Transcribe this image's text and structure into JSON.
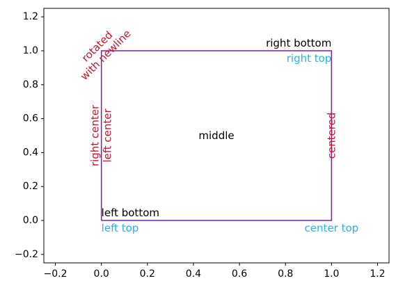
{
  "chart_data": {
    "type": "line",
    "title": "",
    "xlabel": "",
    "ylabel": "",
    "xlim": [
      -0.25,
      1.25
    ],
    "ylim": [
      -0.25,
      1.25
    ],
    "grid": false,
    "x_ticks": [
      {
        "value": -0.2,
        "label": "−0.2"
      },
      {
        "value": 0.0,
        "label": "0.0"
      },
      {
        "value": 0.2,
        "label": "0.2"
      },
      {
        "value": 0.4,
        "label": "0.4"
      },
      {
        "value": 0.6,
        "label": "0.6"
      },
      {
        "value": 0.8,
        "label": "0.8"
      },
      {
        "value": 1.0,
        "label": "1.0"
      },
      {
        "value": 1.2,
        "label": "1.2"
      }
    ],
    "y_ticks": [
      {
        "value": -0.2,
        "label": "−0.2"
      },
      {
        "value": 0.0,
        "label": "0.0"
      },
      {
        "value": 0.2,
        "label": "0.2"
      },
      {
        "value": 0.4,
        "label": "0.4"
      },
      {
        "value": 0.6,
        "label": "0.6"
      },
      {
        "value": 0.8,
        "label": "0.8"
      },
      {
        "value": 1.0,
        "label": "1.0"
      },
      {
        "value": 1.2,
        "label": "1.2"
      }
    ],
    "series": [
      {
        "color": "#7b1fa2",
        "x": [
          0,
          1,
          1,
          0,
          0
        ],
        "y": [
          0,
          0,
          1,
          1,
          0
        ]
      }
    ],
    "annotations": [
      {
        "text": "left bottom",
        "x": 0,
        "y": 0,
        "ha": "left",
        "va": "bottom",
        "rotation": 0,
        "color": "#000000"
      },
      {
        "text": "left top",
        "x": 0,
        "y": 0,
        "ha": "left",
        "va": "top",
        "rotation": 0,
        "color": "#1ab6f0"
      },
      {
        "text": "right bottom",
        "x": 1,
        "y": 1,
        "ha": "right",
        "va": "bottom",
        "rotation": 0,
        "color": "#000000"
      },
      {
        "text": "right top",
        "x": 1,
        "y": 1,
        "ha": "right",
        "va": "top",
        "rotation": 0,
        "color": "#1ab6f0"
      },
      {
        "text": "center top",
        "x": 1,
        "y": 0,
        "ha": "center",
        "va": "top",
        "rotation": 0,
        "color": "#1ab6f0"
      },
      {
        "text": "right center",
        "x": 0,
        "y": 0.5,
        "ha": "right",
        "va": "center",
        "rotation": 90,
        "color": "#d0112b"
      },
      {
        "text": "left center",
        "x": 0,
        "y": 0.5,
        "ha": "left",
        "va": "center",
        "rotation": 90,
        "color": "#d0112b"
      },
      {
        "text": "middle",
        "x": 0.5,
        "y": 0.5,
        "ha": "center",
        "va": "center",
        "rotation": 0,
        "color": "#000000"
      },
      {
        "text": "centered",
        "x": 1,
        "y": 0.5,
        "ha": "center",
        "va": "center",
        "rotation": 90,
        "color": "#d0112b"
      },
      {
        "text": "rotated\nwith newline",
        "x": 0,
        "y": 1,
        "ha": "center",
        "va": "center",
        "rotation": 45,
        "color": "#d0112b"
      }
    ]
  }
}
